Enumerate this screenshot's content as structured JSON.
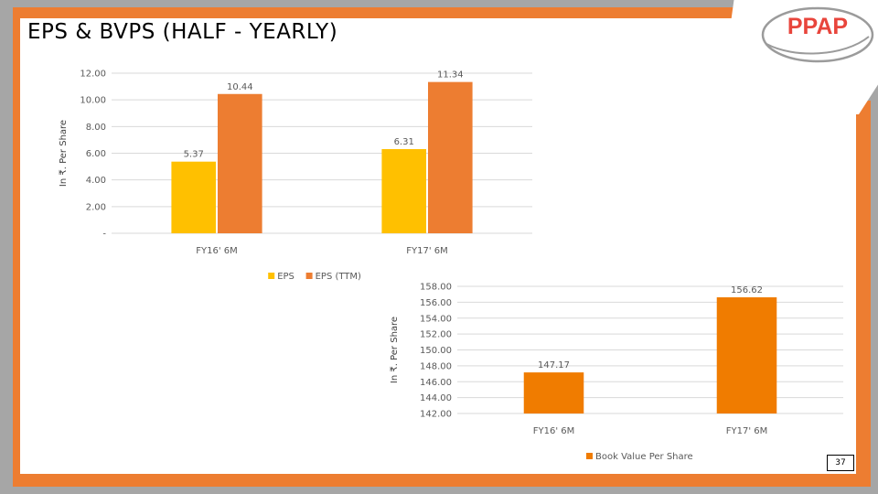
{
  "slide": {
    "title": "EPS & BVPS (HALF - YEARLY)",
    "page_number": "37",
    "logo_text": "PPAP"
  },
  "colors": {
    "frame_orange": "#ed7d31",
    "frame_grey": "#a6a6a6",
    "eps": "#ffc000",
    "eps_ttm": "#ed7d31",
    "bvps": "#f07c00",
    "logo_red": "#e8453c"
  },
  "chart_data": [
    {
      "type": "bar",
      "categories": [
        "FY16' 6M",
        "FY17' 6M"
      ],
      "series": [
        {
          "name": "EPS",
          "values": [
            5.37,
            6.31
          ],
          "color": "#ffc000"
        },
        {
          "name": "EPS (TTM)",
          "values": [
            10.44,
            11.34
          ],
          "color": "#ed7d31"
        }
      ],
      "data_labels": [
        [
          "5.37",
          "6.31"
        ],
        [
          "10.44",
          "11.34"
        ]
      ],
      "ylabel": "In ₹. Per Share",
      "xlabel": "",
      "ylim": [
        0,
        12
      ],
      "yticks": [
        0,
        2,
        4,
        6,
        8,
        10,
        12
      ],
      "ytick_labels": [
        "-",
        "2.00",
        "4.00",
        "6.00",
        "8.00",
        "10.00",
        "12.00"
      ],
      "grid": true,
      "legend_position": "bottom"
    },
    {
      "type": "bar",
      "categories": [
        "FY16' 6M",
        "FY17' 6M"
      ],
      "series": [
        {
          "name": "Book Value Per Share",
          "values": [
            147.17,
            156.62
          ],
          "color": "#f07c00"
        }
      ],
      "data_labels": [
        [
          "147.17",
          "156.62"
        ]
      ],
      "ylabel": "In ₹. Per Share",
      "xlabel": "",
      "ylim": [
        142,
        158
      ],
      "yticks": [
        142,
        144,
        146,
        148,
        150,
        152,
        154,
        156,
        158
      ],
      "ytick_labels": [
        "142.00",
        "144.00",
        "146.00",
        "148.00",
        "150.00",
        "152.00",
        "154.00",
        "156.00",
        "158.00"
      ],
      "grid": true,
      "legend_position": "bottom"
    }
  ]
}
